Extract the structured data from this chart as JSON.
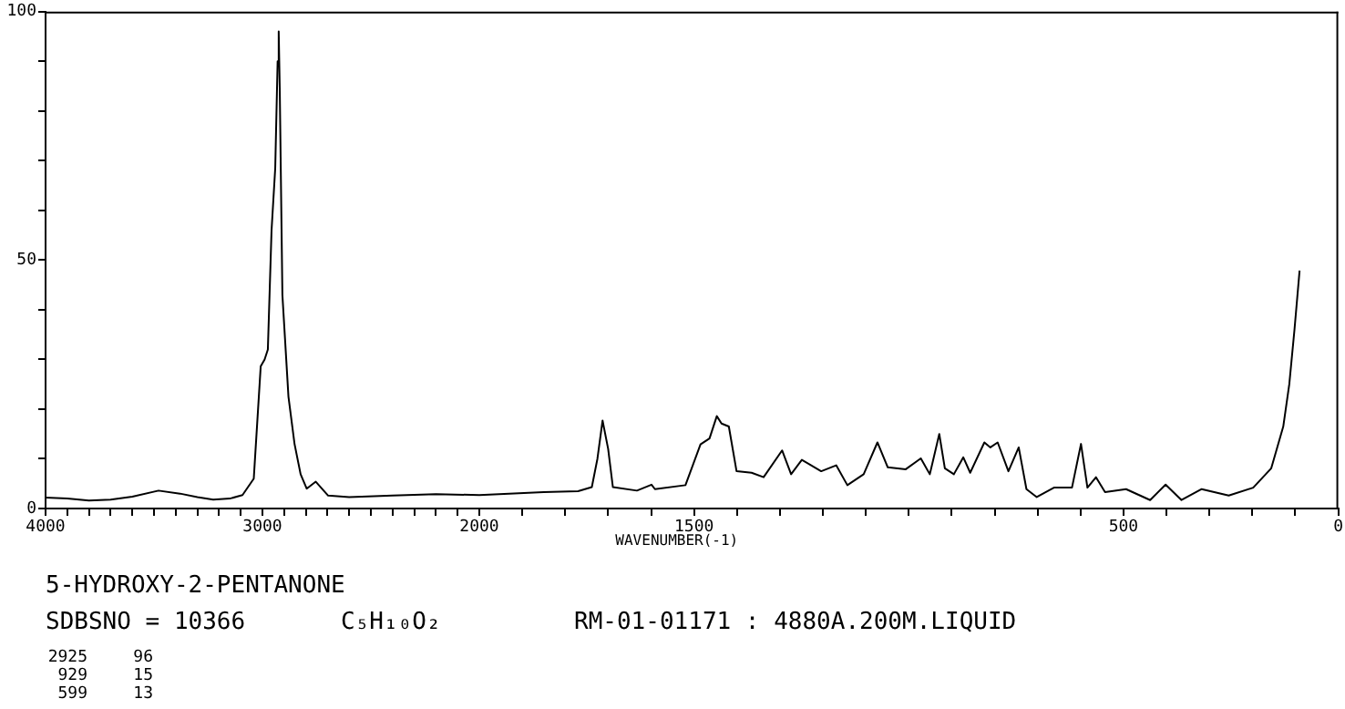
{
  "chart_data": [
    {
      "type": "line",
      "annotations": [
        "5-HYDROXY-2-PENTANONE",
        "SDBSNO = 10366",
        "C₅H₁₀O₂",
        "RM-01-01171 : 4880A.200M.LIQUID",
        "2925 96",
        "929 15",
        "599 13"
      ],
      "x": [
        4000,
        3900,
        3800,
        3700,
        3600,
        3479,
        3380,
        3300,
        3227,
        3150,
        3092,
        3040,
        3008,
        2990,
        2975,
        2958,
        2941,
        2930,
        2925,
        2920,
        2908,
        2880,
        2852,
        2824,
        2796,
        2754,
        2697,
        2600,
        2400,
        2200,
        2000
      ],
      "values": [
        2.2,
        2.0,
        1.6,
        1.8,
        2.4,
        3.6,
        3.0,
        2.3,
        1.8,
        2.0,
        2.7,
        6,
        28.6,
        30,
        32,
        56,
        68.5,
        90,
        96,
        84,
        43,
        22.5,
        13,
        6.9,
        4,
        5.4,
        2.6,
        2.3,
        2.6,
        2.9,
        2.7
      ],
      "color": "#000000",
      "xlim": [
        4000,
        2000
      ],
      "ylim": [
        0,
        100
      ],
      "xticks": [
        4000,
        {
          "value": 3900,
          "label": null
        },
        {
          "value": 3800,
          "label": null
        },
        {
          "value": 3700,
          "label": null
        },
        {
          "value": 3600,
          "label": null
        },
        {
          "value": 3500,
          "label": null
        },
        {
          "value": 3400,
          "label": null
        },
        {
          "value": 3300,
          "label": null
        },
        {
          "value": 3200,
          "label": null
        },
        {
          "value": 3100,
          "label": null
        },
        3000,
        {
          "value": 2900,
          "label": null
        },
        {
          "value": 2800,
          "label": null
        },
        {
          "value": 2700,
          "label": null
        },
        {
          "value": 2600,
          "label": null
        },
        {
          "value": 2500,
          "label": null
        },
        {
          "value": 2400,
          "label": null
        },
        {
          "value": 2300,
          "label": null
        },
        {
          "value": 2200,
          "label": null
        },
        {
          "value": 2100,
          "label": null
        },
        2000
      ],
      "yticks": [
        0,
        {
          "value": 10,
          "label": null
        },
        {
          "value": 20,
          "label": null
        },
        {
          "value": 30,
          "label": null
        },
        {
          "value": 40,
          "label": null
        },
        50,
        {
          "value": 60,
          "label": null
        },
        {
          "value": 70,
          "label": null
        },
        {
          "value": 80,
          "label": null
        },
        {
          "value": 90,
          "label": null
        },
        100
      ]
    },
    {
      "type": "line",
      "xlabel": "WAVENUMBER(-1)",
      "tick_labels": "x",
      "x": [
        2000,
        1850,
        1770,
        1738,
        1725,
        1713,
        1700,
        1689,
        1633,
        1599,
        1591,
        1520,
        1485,
        1464,
        1447,
        1436,
        1419,
        1401,
        1366,
        1338,
        1295,
        1274,
        1249,
        1204,
        1169,
        1143,
        1105,
        1073,
        1049,
        1007,
        972,
        951,
        929,
        916,
        895,
        873,
        857,
        824,
        810,
        793,
        768,
        744,
        726,
        702,
        662,
        620,
        599,
        584,
        564,
        543,
        494,
        438,
        402,
        365,
        318,
        255,
        198,
        156,
        128,
        114,
        102,
        90
      ],
      "values": [
        2.7,
        3.3,
        3.5,
        4.3,
        10,
        17.7,
        12,
        4.3,
        3.6,
        4.8,
        3.9,
        4.7,
        12.9,
        14.1,
        18.6,
        17.1,
        16.5,
        7.5,
        7.2,
        6.3,
        11.7,
        6.9,
        9.8,
        7.5,
        8.7,
        4.7,
        6.9,
        13.3,
        8.3,
        7.9,
        10.1,
        6.9,
        15,
        8.1,
        6.9,
        10.3,
        7.2,
        13.3,
        12.3,
        13.3,
        7.5,
        12.3,
        3.9,
        2.3,
        4.2,
        4.2,
        13,
        4.2,
        6.3,
        3.3,
        3.9,
        1.7,
        4.8,
        1.7,
        3.9,
        2.6,
        4.2,
        8.1,
        16.5,
        25,
        35.9,
        47.9
      ],
      "color": "#000000",
      "xlim": [
        2000,
        0
      ],
      "ylim": [
        0,
        100
      ],
      "xticks": [
        {
          "value": 1900,
          "label": null
        },
        {
          "value": 1800,
          "label": null
        },
        {
          "value": 1700,
          "label": null
        },
        {
          "value": 1600,
          "label": null
        },
        1500,
        {
          "value": 1400,
          "label": null
        },
        {
          "value": 1300,
          "label": null
        },
        {
          "value": 1200,
          "label": null
        },
        {
          "value": 1100,
          "label": null
        },
        {
          "value": 1000,
          "label": null
        },
        {
          "value": 900,
          "label": null
        },
        {
          "value": 800,
          "label": null
        },
        {
          "value": 700,
          "label": null
        },
        {
          "value": 600,
          "label": null
        },
        500,
        {
          "value": 400,
          "label": null
        },
        {
          "value": 300,
          "label": null
        },
        {
          "value": 200,
          "label": null
        },
        {
          "value": 100,
          "label": null
        },
        0
      ]
    }
  ]
}
